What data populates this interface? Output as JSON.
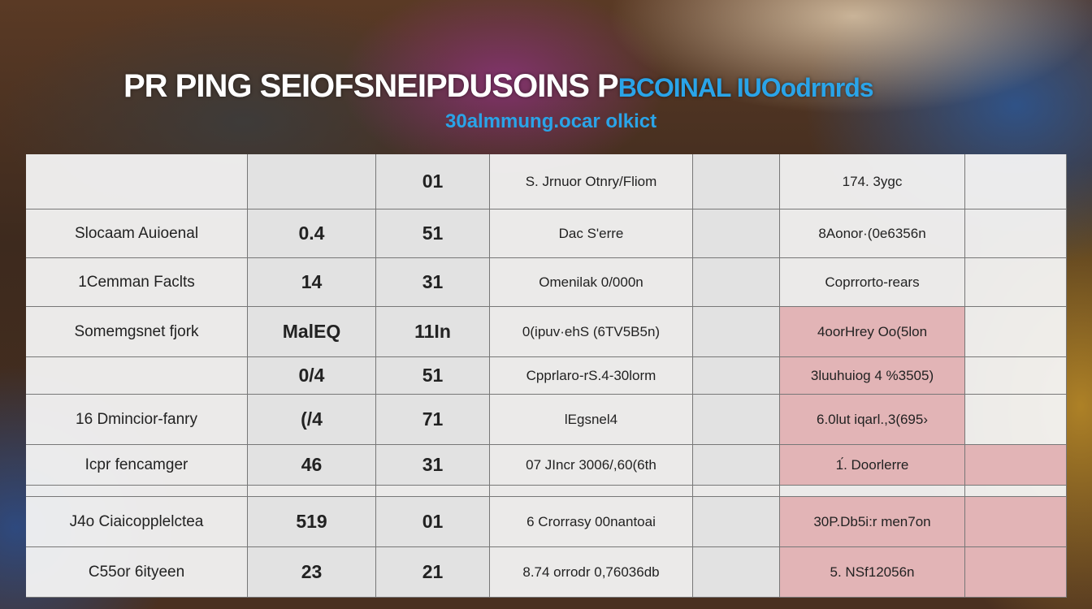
{
  "title": {
    "white": "PR PING SEIOFSNEIPDUSOINS P",
    "blue": "BCOINAL IUOodrnrds",
    "subtitle": "30almmung.ocar olkict"
  },
  "table": {
    "rows": [
      [
        "",
        "",
        "01",
        "S. Jrnuor Otnry/Fliom",
        "",
        "174. 3ygc",
        ""
      ],
      [
        "Slocaam Auioenal",
        "0.4",
        "51",
        "Dac S'erre",
        "",
        "8Aonor·(0e6356n",
        ""
      ],
      [
        "1Cemman Faclts",
        "14",
        "31",
        "Omenilak 0/000n",
        "",
        "Coprrorto-rears",
        ""
      ],
      [
        "Somemgsnet fjork",
        "MalEQ",
        "11In",
        "0(ipuv·ehS (6TV5B5n)",
        "",
        "4oorHrey Oo(5lon",
        ""
      ],
      [
        "",
        "0/4",
        "51",
        "Cpprlaro-rS.4-30lorm",
        "",
        "3luuhuiog 4 %3505)",
        ""
      ],
      [
        "16 Dmincior-fanry",
        "(/4",
        "71",
        "lEgsnel4",
        "",
        "6.0lut iqarl.,3(695›",
        ""
      ],
      [
        "Icpr fencamger",
        "46",
        "31",
        "07 JIncr 3006/,60(6th",
        "",
        "1́. Doorlerre",
        ""
      ],
      [
        "",
        "",
        "",
        "",
        "",
        "",
        ""
      ],
      [
        "J4o Ciaicopplelctea",
        "519",
        "01",
        "6 Crorrasy 00nantoai",
        "",
        "30P.Db5i:r men7on",
        ""
      ],
      [
        "C55or 6ityeen",
        "23",
        "21",
        "8.74 orrodr 0,76036db",
        "",
        "5. NSf12056n",
        ""
      ]
    ],
    "highlight_color": "#e2b4b6"
  }
}
